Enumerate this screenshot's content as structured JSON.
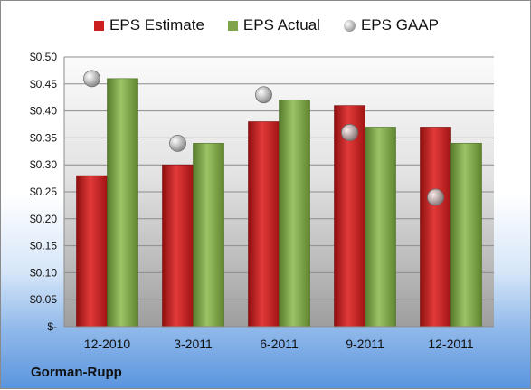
{
  "chart_data": {
    "type": "bar",
    "categories": [
      "12-2010",
      "3-2011",
      "6-2011",
      "9-2011",
      "12-2011"
    ],
    "series": [
      {
        "name": "EPS Estimate",
        "values": [
          0.28,
          0.3,
          0.38,
          0.41,
          0.37
        ],
        "color": "#cc1f1f"
      },
      {
        "name": "EPS Actual",
        "values": [
          0.46,
          0.34,
          0.42,
          0.37,
          0.34
        ],
        "color": "#7fa54a"
      },
      {
        "name": "EPS GAAP",
        "values": [
          0.46,
          0.34,
          0.43,
          0.36,
          0.24
        ],
        "color": "#a9a9a9",
        "marker": "circle"
      }
    ],
    "ylim": [
      0,
      0.5
    ],
    "yticks": [
      0,
      0.05,
      0.1,
      0.15,
      0.2,
      0.25,
      0.3,
      0.35,
      0.4,
      0.45,
      0.5
    ],
    "ytick_labels": [
      "$-",
      "$0.05",
      "$0.10",
      "$0.15",
      "$0.20",
      "$0.25",
      "$0.30",
      "$0.35",
      "$0.40",
      "$0.45",
      "$0.50"
    ],
    "grid": true,
    "legend_position": "top"
  },
  "company": "Gorman-Rupp"
}
